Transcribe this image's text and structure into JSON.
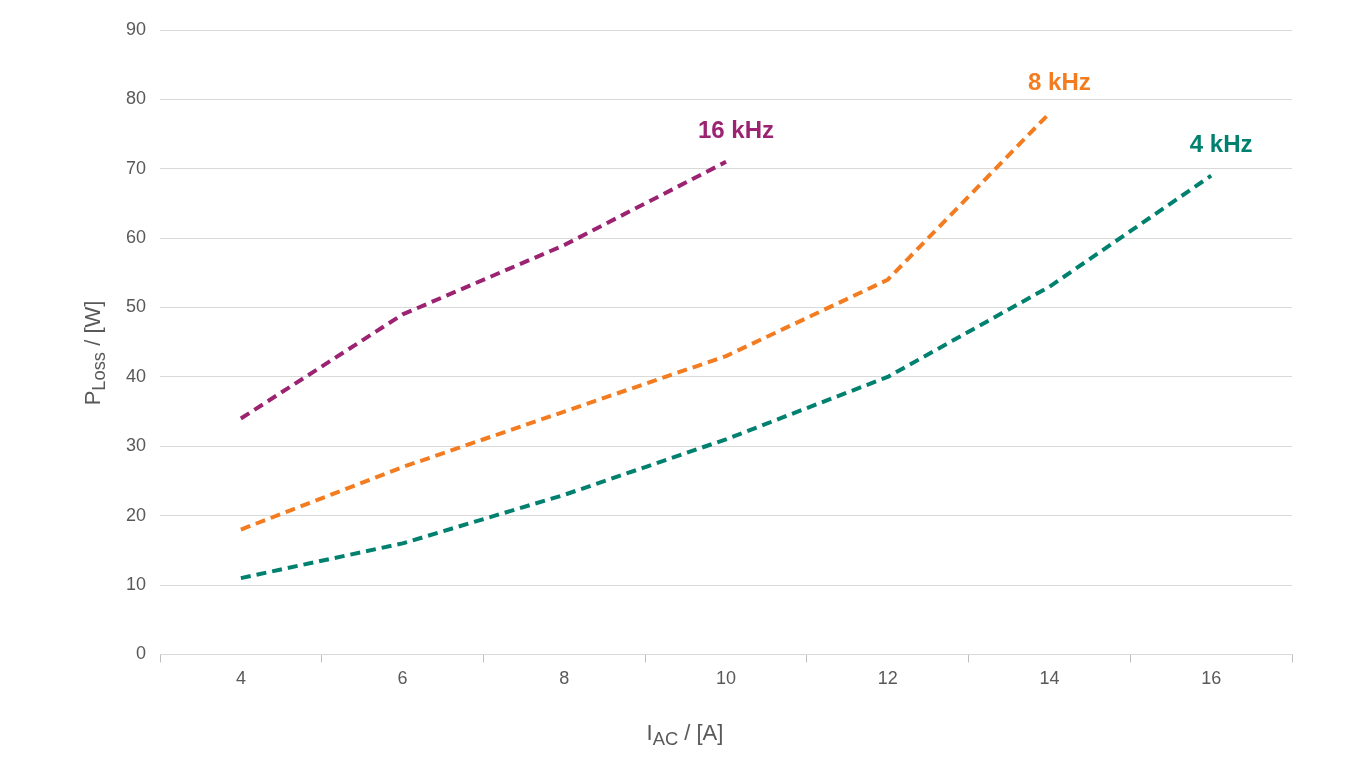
{
  "chart_data": {
    "type": "line",
    "xlabel": "I$_{AC}$ / [A]",
    "ylabel": "P$_{Loss}$ / [W]",
    "categories": [
      "4",
      "6",
      "8",
      "10",
      "12",
      "14",
      "16"
    ],
    "series": [
      {
        "name": "16 kHz",
        "color": "#9b2371",
        "values": [
          34,
          49,
          59,
          71,
          null,
          null,
          null
        ]
      },
      {
        "name": "8 kHz",
        "color": "#f47c20",
        "values": [
          18,
          27,
          35,
          43,
          54,
          78,
          null
        ]
      },
      {
        "name": "4 kHz",
        "color": "#00806e",
        "values": [
          11,
          16,
          23,
          31,
          40,
          53,
          69
        ]
      }
    ],
    "ylim": [
      0,
      90
    ],
    "yticks": [
      0,
      10,
      20,
      30,
      40,
      50,
      60,
      70,
      80,
      90
    ],
    "grid": "y",
    "legend": false,
    "marker": "none",
    "line_style": "dashed"
  }
}
